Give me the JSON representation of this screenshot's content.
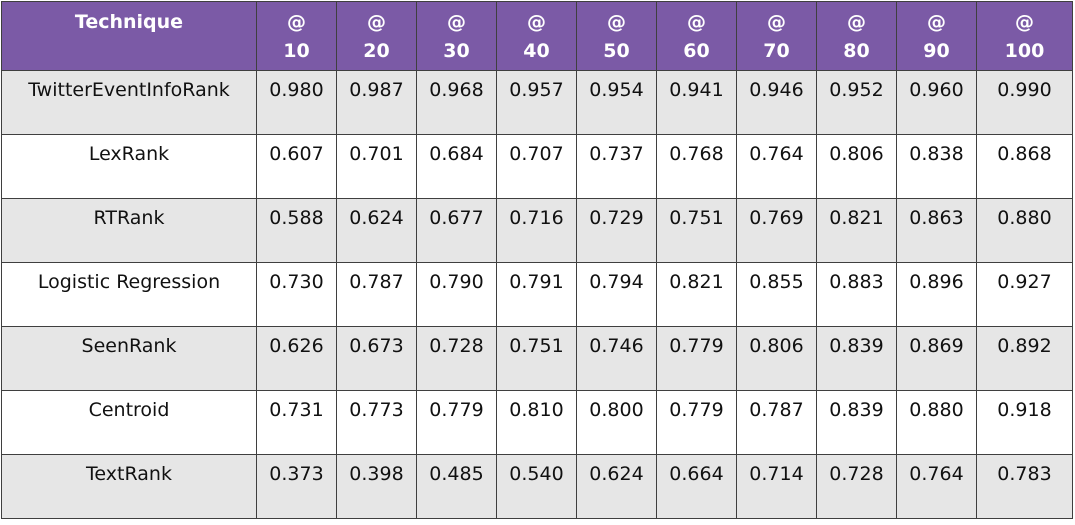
{
  "chart_data": {
    "type": "table",
    "header": {
      "technique_label": "Technique",
      "columns": [
        {
          "at": "@",
          "num": "10"
        },
        {
          "at": "@",
          "num": "20"
        },
        {
          "at": "@",
          "num": "30"
        },
        {
          "at": "@",
          "num": "40"
        },
        {
          "at": "@",
          "num": "50"
        },
        {
          "at": "@",
          "num": "60"
        },
        {
          "at": "@",
          "num": "70"
        },
        {
          "at": "@",
          "num": "80"
        },
        {
          "at": "@",
          "num": "90"
        },
        {
          "at": "@",
          "num": "100"
        }
      ]
    },
    "rows": [
      {
        "technique": "TwitterEventInfoRank",
        "values": [
          "0.980",
          "0.987",
          "0.968",
          "0.957",
          "0.954",
          "0.941",
          "0.946",
          "0.952",
          "0.960",
          "0.990"
        ]
      },
      {
        "technique": "LexRank",
        "values": [
          "0.607",
          "0.701",
          "0.684",
          "0.707",
          "0.737",
          "0.768",
          "0.764",
          "0.806",
          "0.838",
          "0.868"
        ]
      },
      {
        "technique": "RTRank",
        "values": [
          "0.588",
          "0.624",
          "0.677",
          "0.716",
          "0.729",
          "0.751",
          "0.769",
          "0.821",
          "0.863",
          "0.880"
        ]
      },
      {
        "technique": "Logistic Regression",
        "values": [
          "0.730",
          "0.787",
          "0.790",
          "0.791",
          "0.794",
          "0.821",
          "0.855",
          "0.883",
          "0.896",
          "0.927"
        ]
      },
      {
        "technique": "SeenRank",
        "values": [
          "0.626",
          "0.673",
          "0.728",
          "0.751",
          "0.746",
          "0.779",
          "0.806",
          "0.839",
          "0.869",
          "0.892"
        ]
      },
      {
        "technique": "Centroid",
        "values": [
          "0.731",
          "0.773",
          "0.779",
          "0.810",
          "0.800",
          "0.779",
          "0.787",
          "0.839",
          "0.880",
          "0.918"
        ]
      },
      {
        "technique": "TextRank",
        "values": [
          "0.373",
          "0.398",
          "0.485",
          "0.540",
          "0.624",
          "0.664",
          "0.714",
          "0.728",
          "0.764",
          "0.783"
        ]
      }
    ],
    "colors": {
      "header_background": "#7b5aa6",
      "header_text": "#ffffff",
      "row_band": "#e6e6e6",
      "row_plain": "#ffffff",
      "border": "#3f3f3f"
    }
  }
}
